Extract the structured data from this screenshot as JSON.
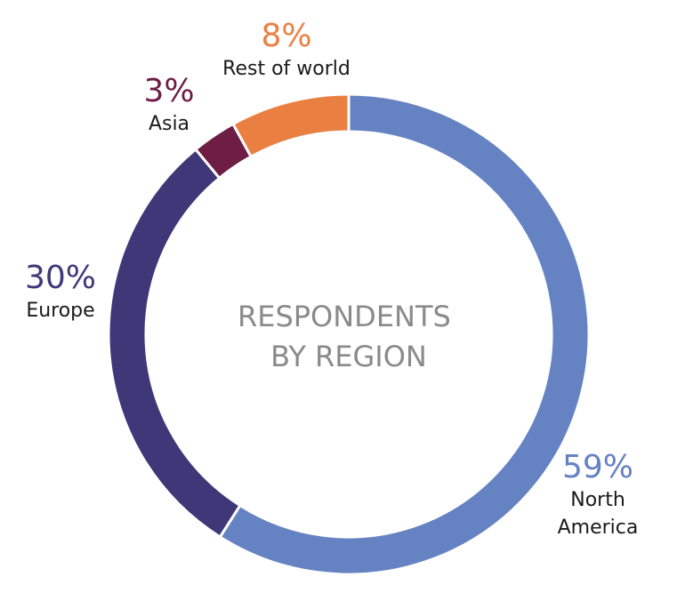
{
  "chart_data": {
    "type": "pie",
    "variant": "donut",
    "title": "RESPONDENTS BY REGION",
    "title_lines": [
      "RESPONDENTS",
      "BY REGION"
    ],
    "slices": [
      {
        "label": "North America",
        "label_lines": [
          "North",
          "America"
        ],
        "value": 59,
        "value_label": "59%",
        "color": "#6583c3"
      },
      {
        "label": "Europe",
        "label_lines": [
          "Europe"
        ],
        "value": 30,
        "value_label": "30%",
        "color": "#403779"
      },
      {
        "label": "Asia",
        "label_lines": [
          "Asia"
        ],
        "value": 3,
        "value_label": "3%",
        "color": "#6e1d45"
      },
      {
        "label": "Rest of world",
        "label_lines": [
          "Rest of world"
        ],
        "value": 8,
        "value_label": "8%",
        "color": "#e98042"
      }
    ]
  }
}
